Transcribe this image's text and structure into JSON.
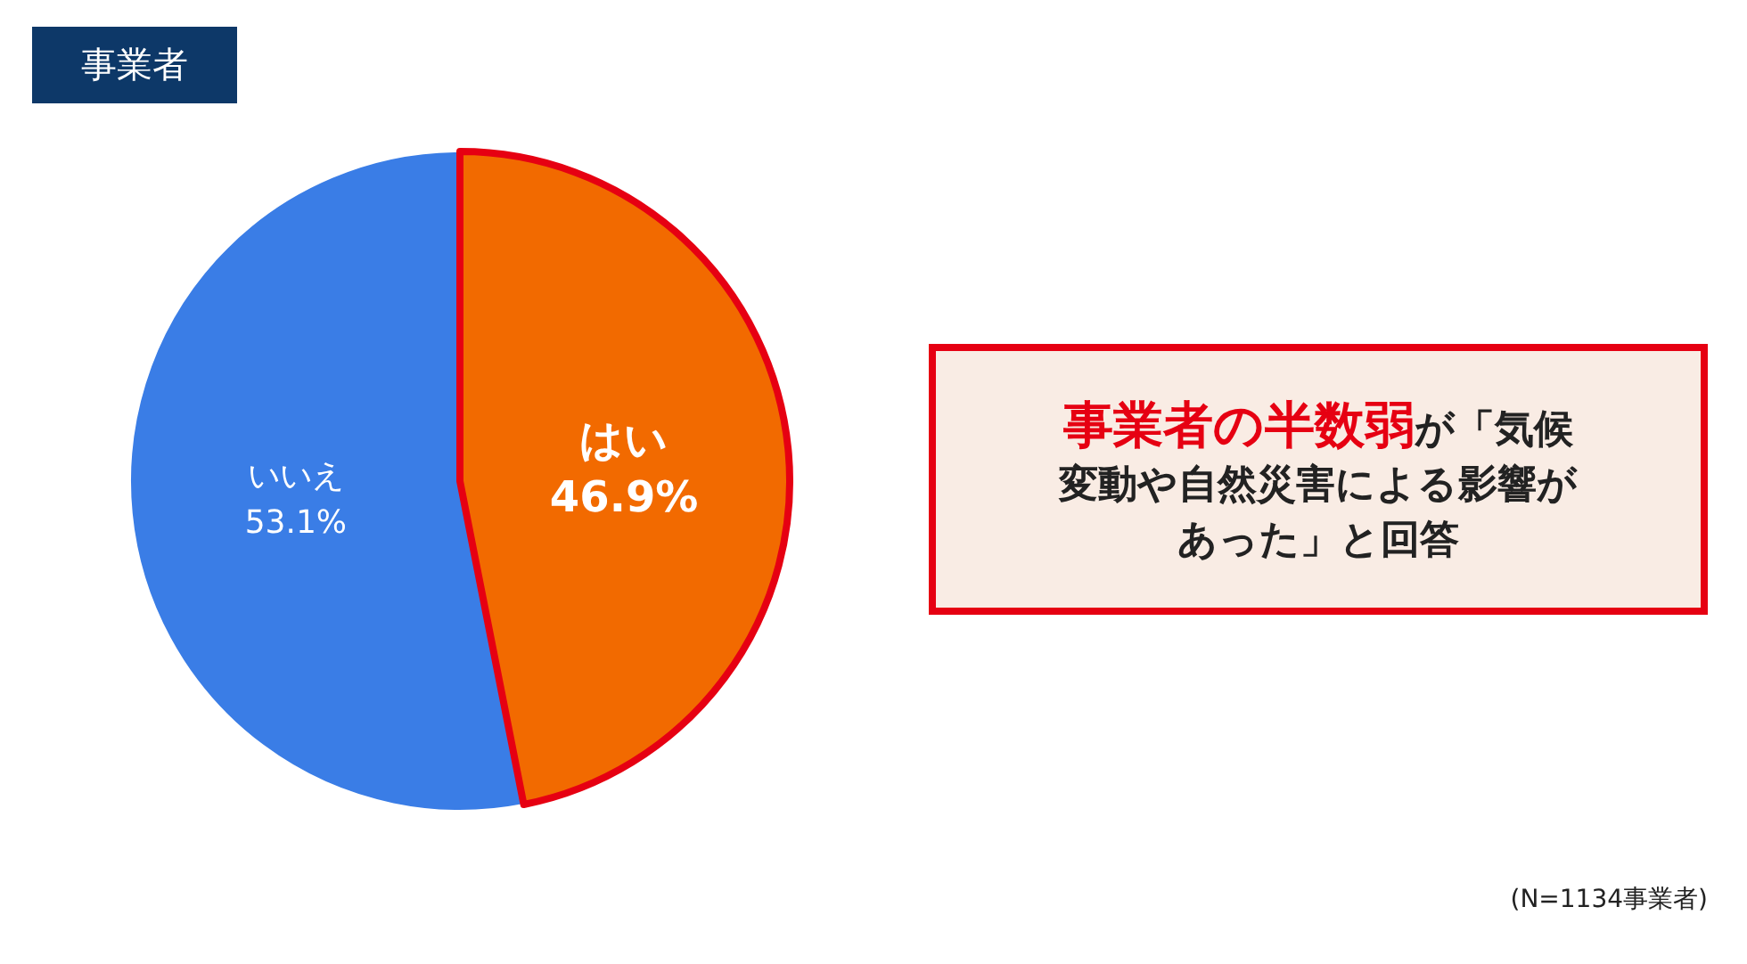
{
  "chart_data": {
    "type": "pie",
    "title": "事業者",
    "categories": [
      "はい",
      "いいえ"
    ],
    "values": [
      46.9,
      53.1
    ],
    "colors": [
      "#f26a00",
      "#3a7de6"
    ],
    "value_labels": [
      "46.9%",
      "53.1%"
    ],
    "annotations": [
      "**事業者の半数弱**が「気候変動や自然災害による影響があった」と回答",
      "(N=1134事業者)"
    ]
  }
}
